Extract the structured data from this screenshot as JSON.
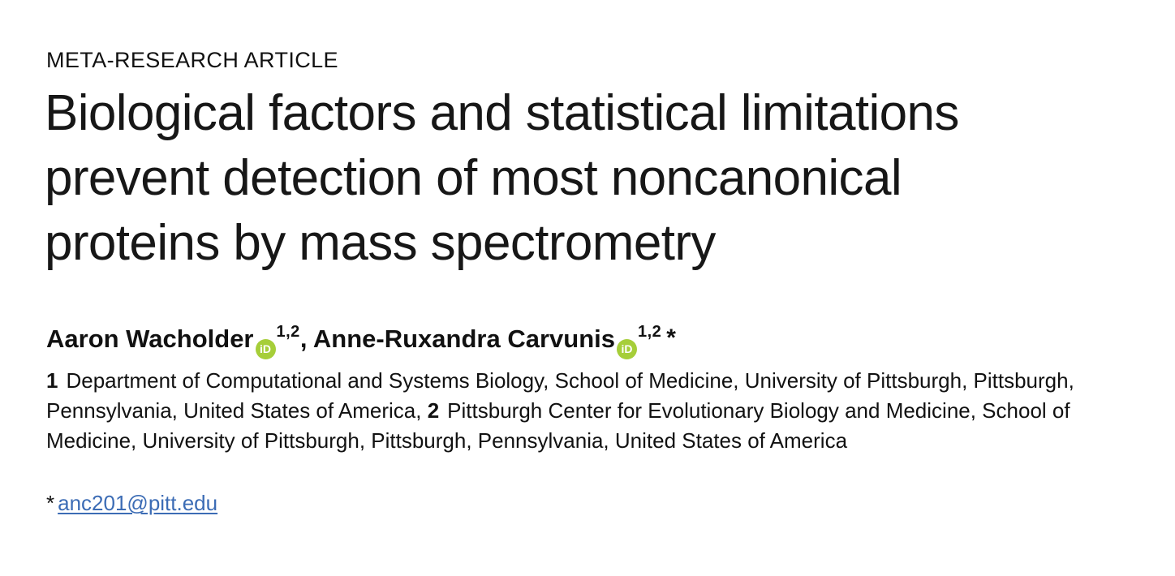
{
  "article": {
    "kicker": "META-RESEARCH ARTICLE",
    "title_lines": [
      "Biological factors and statistical limitations",
      "prevent detection of most noncanonical",
      "proteins by mass spectrometry"
    ],
    "authors": [
      {
        "name": "Aaron Wacholder",
        "affiliation_sup": "1,2"
      },
      {
        "name": "Anne-Ruxandra Carvunis",
        "affiliation_sup": "1,2"
      }
    ],
    "author_separator": ",",
    "corresponding_marker": "*",
    "orcid": {
      "label": "iD",
      "color": "#a6ce39"
    },
    "affiliations": [
      {
        "number": "1",
        "text": "Department of Computational and Systems Biology, School of Medicine, University of Pittsburgh, Pittsburgh, Pennsylvania, United States of America,"
      },
      {
        "number": "2",
        "text": "Pittsburgh Center for Evolutionary Biology and Medicine, School of Medicine, University of Pittsburgh, Pittsburgh, Pennsylvania, United States of America"
      }
    ],
    "correspondence": {
      "marker": "*",
      "email": "anc201@pitt.edu",
      "link_color": "#3c6cb5"
    }
  }
}
